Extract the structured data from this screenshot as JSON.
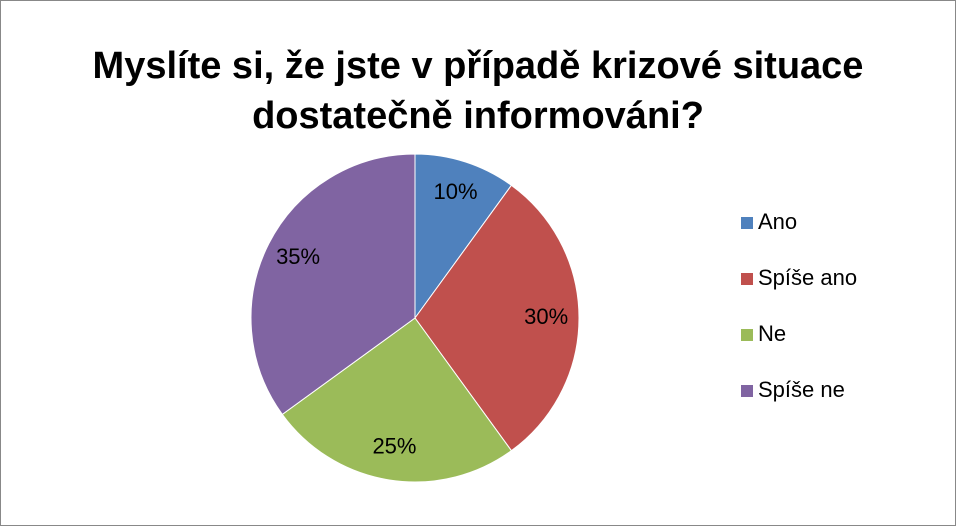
{
  "chart_data": {
    "type": "pie",
    "title": "Myslíte si, že jste v případě krizové situace dostatečně informováni?",
    "categories": [
      "Ano",
      "Spíše ano",
      "Ne",
      "Spíše ne"
    ],
    "values": [
      10,
      30,
      25,
      35
    ],
    "value_labels": [
      "10%",
      "30%",
      "25%",
      "35%"
    ],
    "colors": [
      "#4f81bd",
      "#c0504d",
      "#9bbb59",
      "#8064a2"
    ],
    "legend": "right"
  }
}
